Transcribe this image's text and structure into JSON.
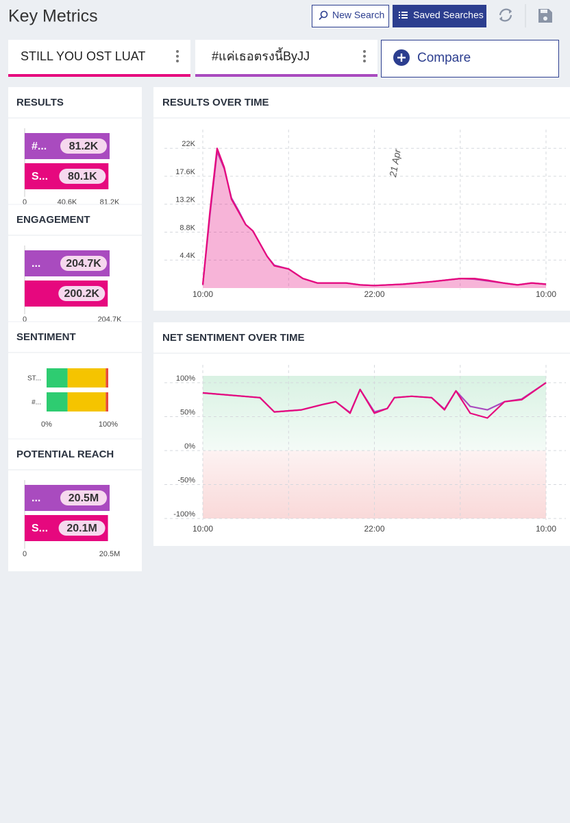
{
  "header": {
    "title": "Key Metrics",
    "buttons": [
      "New Search",
      "Saved Searches"
    ]
  },
  "tabs": [
    {
      "label": "STILL YOU OST LUAT",
      "color": "#e6087e"
    },
    {
      "label": "#แค่เธอตรงนี้ByJJ",
      "color": "#a94bbf"
    }
  ],
  "compare": "Compare",
  "panels": [
    {
      "type": "bar",
      "title": "RESULTS",
      "xlim": [
        0,
        81.2
      ],
      "xticks": [
        0,
        {
          "value": 40.6,
          "label": "40.6K"
        },
        {
          "value": 81.2,
          "label": "81.2K"
        }
      ],
      "bars": [
        {
          "label": "#...",
          "value": 81.2,
          "value_label": "81.2K",
          "color": "#a94bbf"
        },
        {
          "label": "S...",
          "value": 80.1,
          "value_label": "80.1K",
          "color": "#e6087e"
        }
      ]
    },
    {
      "type": "bar",
      "title": "ENGAGEMENT",
      "xlim": [
        0,
        204.7
      ],
      "xticks": [
        0,
        {
          "value": 204.7,
          "label": "204.7K"
        }
      ],
      "bars": [
        {
          "label": "...",
          "value": 204.7,
          "value_label": "204.7K",
          "color": "#a94bbf"
        },
        {
          "label": null,
          "value": 200.2,
          "value_label": "200.2K",
          "color": "#e6087e"
        }
      ]
    },
    {
      "type": "stacked",
      "title": "SENTIMENT",
      "xlim": [
        0,
        100
      ],
      "xticks": [
        {
          "value": 0,
          "label": "0%"
        },
        {
          "value": 100,
          "label": "100%"
        }
      ],
      "colors": [
        "#2ecc71",
        "#f5c400",
        "#e74c3c"
      ],
      "rows": [
        {
          "label": "ST...",
          "values": [
            34,
            62,
            4
          ]
        },
        {
          "label": "#...",
          "values": [
            34,
            62,
            4
          ]
        }
      ]
    },
    {
      "type": "bar",
      "title": "POTENTIAL REACH",
      "xlim": [
        0,
        20.5
      ],
      "xticks": [
        0,
        {
          "value": 20.5,
          "label": "20.5M"
        }
      ],
      "bars": [
        {
          "label": "...",
          "value": 20.5,
          "value_label": "20.5M",
          "color": "#a94bbf"
        },
        {
          "label": "S...",
          "value": 20.1,
          "value_label": "20.1M",
          "color": "#e6087e"
        }
      ]
    }
  ],
  "charts": [
    {
      "type": "area",
      "title": "RESULTS OVER TIME",
      "annotation": "21 Apr",
      "annotation_x": 13.5,
      "x": [
        0,
        0.5,
        1,
        1.5,
        2,
        2.5,
        3,
        3.5,
        4,
        4.5,
        5,
        6,
        7,
        8,
        10,
        11,
        12,
        14,
        16,
        18,
        19,
        20,
        21,
        22,
        23,
        24
      ],
      "xlim": [
        0,
        24
      ],
      "xticks": [
        {
          "value": 0,
          "label": "10:00"
        },
        {
          "value": 12,
          "label": "22:00"
        },
        {
          "value": 24,
          "label": "10:00"
        }
      ],
      "ylim": [
        0,
        23
      ],
      "yticks": [
        {
          "value": 4.4,
          "label": "4.4K"
        },
        {
          "value": 8.8,
          "label": "8.8K"
        },
        {
          "value": 13.2,
          "label": "13.2K"
        },
        {
          "value": 17.6,
          "label": "17.6K"
        },
        {
          "value": 22,
          "label": "22K"
        }
      ],
      "series": [
        {
          "color": "#a94bbf",
          "values": [
            0.5,
            11.5,
            21.5,
            18.8,
            14.2,
            12.2,
            10,
            9,
            7,
            5,
            3.6,
            3,
            1.5,
            0.8,
            0.8,
            0.5,
            0.4,
            0.6,
            1,
            1.5,
            1.4,
            1.1,
            0.8,
            0.5,
            0.8,
            0.6
          ]
        },
        {
          "color": "#e6087e",
          "values": [
            0.5,
            12,
            22,
            19,
            14,
            12,
            10,
            9,
            7,
            5,
            3.5,
            3,
            1.5,
            0.8,
            0.8,
            0.5,
            0.4,
            0.6,
            1,
            1.5,
            1.5,
            1.2,
            0.8,
            0.5,
            0.8,
            0.6
          ]
        }
      ]
    },
    {
      "type": "line",
      "title": "NET SENTIMENT OVER TIME",
      "x": [
        0,
        4,
        5,
        6.9,
        8.4,
        9.3,
        10.3,
        11,
        12,
        12.9,
        13.4,
        14.6,
        16,
        16.9,
        17.7,
        18.7,
        19.9,
        21.1,
        22.3,
        24
      ],
      "xlim": [
        0,
        24
      ],
      "xticks": [
        {
          "value": 0,
          "label": "10:00"
        },
        {
          "value": 12,
          "label": "22:00"
        },
        {
          "value": 24,
          "label": "10:00"
        }
      ],
      "ylim": [
        -100,
        100
      ],
      "yticks": [
        {
          "value": -100,
          "label": "-100%"
        },
        {
          "value": -50,
          "label": "-50%"
        },
        {
          "value": 0,
          "label": "0%"
        },
        {
          "value": 50,
          "label": "50%"
        },
        {
          "value": 100,
          "label": "100%"
        }
      ],
      "series": [
        {
          "color": "#a94bbf",
          "values": [
            85,
            78,
            57,
            60,
            68,
            72,
            56,
            90,
            57,
            62,
            78,
            80,
            78,
            61,
            88,
            65,
            60,
            72,
            76,
            100
          ]
        },
        {
          "color": "#e6087e",
          "values": [
            85,
            78,
            57,
            60,
            68,
            72,
            55,
            90,
            55,
            62,
            78,
            80,
            78,
            60,
            88,
            55,
            48,
            72,
            75,
            100
          ]
        }
      ]
    }
  ]
}
